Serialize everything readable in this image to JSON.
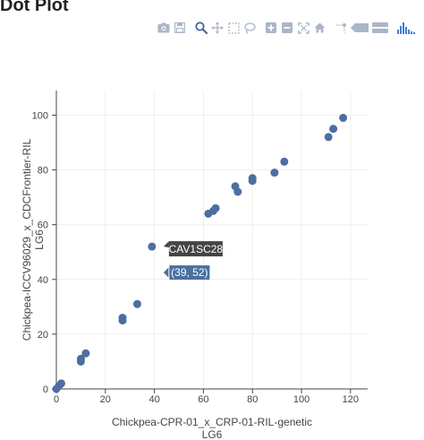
{
  "page": {
    "title": "Dot Plot"
  },
  "modebar": {
    "buttons": [
      {
        "name": "camera-icon"
      },
      {
        "name": "save-icon"
      },
      {
        "name": "zoom-icon"
      },
      {
        "name": "pan-icon"
      },
      {
        "name": "box-select-icon"
      },
      {
        "name": "lasso-icon"
      },
      {
        "name": "zoom-in-icon"
      },
      {
        "name": "zoom-out-icon"
      },
      {
        "name": "autoscale-icon"
      },
      {
        "name": "home-icon"
      },
      {
        "name": "spike-lines-icon"
      },
      {
        "name": "hover-closest-icon"
      },
      {
        "name": "hover-compare-icon"
      },
      {
        "name": "plotly-logo-icon"
      }
    ],
    "colors": {
      "icon": "#a9b6c9",
      "active": "#44679b"
    }
  },
  "chart_data": {
    "type": "scatter",
    "xlabel": [
      "Chickpea-CPR-01_x_CRP-01-RIL-genetic",
      "LG6"
    ],
    "ylabel": [
      "Chickpea-ICCV96029_x_CDCFrontier-RIL",
      "LG6"
    ],
    "xlim": [
      0,
      127
    ],
    "ylim": [
      0,
      109
    ],
    "xticks": [
      0,
      20,
      40,
      60,
      80,
      100,
      120
    ],
    "yticks": [
      0,
      20,
      40,
      60,
      80,
      100
    ],
    "grid": true,
    "marker_color": "#4c6ea1",
    "points": [
      {
        "x": 0,
        "y": 0
      },
      {
        "x": 1,
        "y": 1
      },
      {
        "x": 2,
        "y": 2
      },
      {
        "x": 10,
        "y": 10
      },
      {
        "x": 10,
        "y": 11
      },
      {
        "x": 12,
        "y": 13
      },
      {
        "x": 27,
        "y": 25
      },
      {
        "x": 27,
        "y": 26
      },
      {
        "x": 33,
        "y": 31
      },
      {
        "x": 39,
        "y": 52
      },
      {
        "x": 62,
        "y": 64
      },
      {
        "x": 64,
        "y": 65
      },
      {
        "x": 65,
        "y": 66
      },
      {
        "x": 73,
        "y": 74
      },
      {
        "x": 74,
        "y": 72
      },
      {
        "x": 80,
        "y": 76
      },
      {
        "x": 80,
        "y": 77
      },
      {
        "x": 89,
        "y": 79
      },
      {
        "x": 93,
        "y": 83
      },
      {
        "x": 111,
        "y": 92
      },
      {
        "x": 113,
        "y": 95
      },
      {
        "x": 117,
        "y": 99
      }
    ],
    "hover": {
      "point": {
        "x": 39,
        "y": 52
      },
      "name_label": "CAV1SC28",
      "value_label": "(39, 52)"
    }
  }
}
